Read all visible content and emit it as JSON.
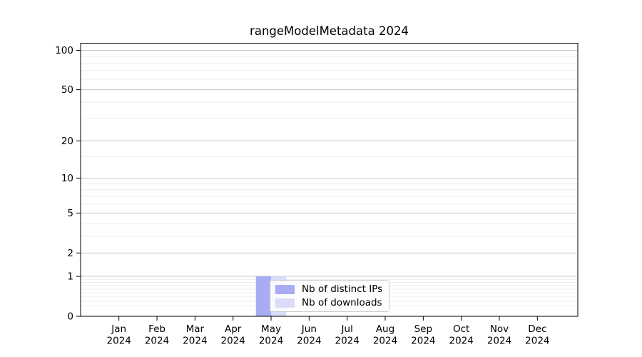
{
  "chart_data": {
    "type": "bar",
    "title": "rangeModelMetadata 2024",
    "x_months": [
      "Jan",
      "Feb",
      "Mar",
      "Apr",
      "May",
      "Jun",
      "Jul",
      "Aug",
      "Sep",
      "Oct",
      "Nov",
      "Dec"
    ],
    "x_year": "2024",
    "series": [
      {
        "name": "Nb of distinct IPs",
        "color": "#a8adf3",
        "values": [
          0,
          0,
          0,
          0,
          1,
          0,
          0,
          0,
          0,
          0,
          0,
          0
        ]
      },
      {
        "name": "Nb of downloads",
        "color": "#dadcf9",
        "values": [
          0,
          0,
          0,
          0,
          1,
          0,
          0,
          0,
          0,
          0,
          0,
          0
        ]
      }
    ],
    "yscale": "log10(1+y)",
    "yticks": [
      0,
      1,
      2,
      5,
      10,
      20,
      50,
      100
    ],
    "minor_gridlines": [
      0.2,
      0.3,
      0.4,
      0.5,
      0.6,
      0.7,
      0.8,
      0.9,
      3,
      4,
      6,
      7,
      8,
      9,
      15,
      30,
      40,
      60,
      70,
      80,
      90
    ],
    "ylim": [
      0,
      113.3
    ],
    "grid": "horizontal",
    "legend_position": "lower-center-inside",
    "legend_entries": [
      "Nb of distinct IPs",
      "Nb of downloads"
    ],
    "colors": {
      "bar_distinct_ips": "#a8adf3",
      "bar_downloads": "#dadcf9",
      "major_grid": "#c8c8c8",
      "minor_grid": "#eeeeee",
      "axis": "#000000",
      "background": "#ffffff",
      "legend_border": "#cccccc"
    }
  }
}
